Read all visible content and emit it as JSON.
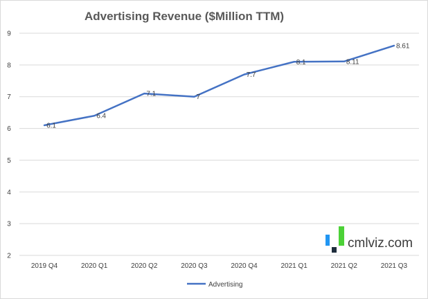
{
  "chart_data": {
    "type": "line",
    "title": "Advertising Revenue ($Million TTM)",
    "categories": [
      "2019 Q4",
      "2020 Q1",
      "2020 Q2",
      "2020 Q3",
      "2020 Q4",
      "2021 Q1",
      "2021 Q2",
      "2021 Q3"
    ],
    "series": [
      {
        "name": "Advertising",
        "values": [
          6.1,
          6.4,
          7.1,
          7,
          7.7,
          8.1,
          8.11,
          8.61
        ],
        "labels": [
          "6.1",
          "6.4",
          "7.1",
          "7",
          "7.7",
          "8.1",
          "8.11",
          "8.61"
        ],
        "color": "#4472c4"
      }
    ],
    "ylim": [
      2,
      9
    ],
    "yticks": [
      "2",
      "3",
      "4",
      "5",
      "6",
      "7",
      "8",
      "9"
    ],
    "xlabel": "",
    "ylabel": "",
    "grid": true,
    "legend": "bottom"
  },
  "watermark": {
    "text": "cmlviz.com",
    "colors": [
      "#2196f3",
      "#4cd137",
      "#1f2d3d"
    ]
  },
  "colors": {
    "grid": "#d9d9d9",
    "axis_text": "#404040",
    "title": "#595959"
  }
}
